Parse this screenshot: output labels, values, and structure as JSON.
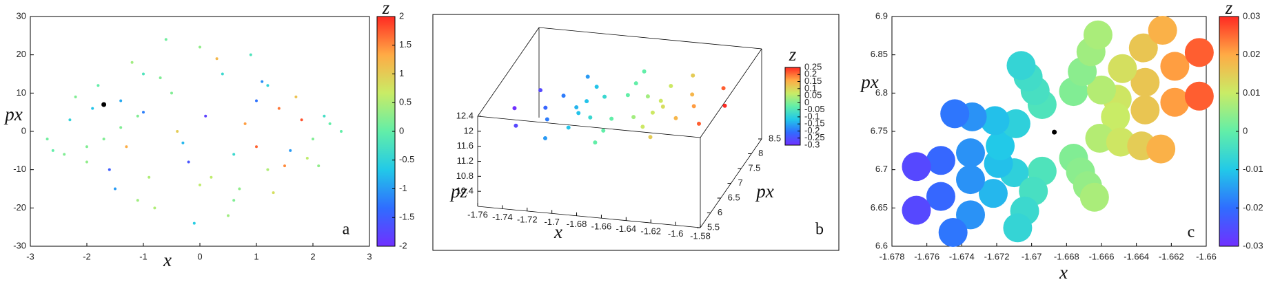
{
  "colormap": [
    "#7030ff",
    "#2f6dff",
    "#22c9e8",
    "#62eea8",
    "#c9ec66",
    "#ffab45",
    "#ff2a22"
  ],
  "chart_data": [
    {
      "type": "scatter",
      "panel_label": "a",
      "x_label": "x",
      "y_label": "px",
      "colorbar_label": "z",
      "x": [
        -2.6,
        -2.3,
        -2.0,
        -1.8,
        -1.5,
        -1.2,
        -1.0,
        -0.8,
        -0.5,
        -0.3,
        0,
        0.2,
        0.4,
        0.6,
        0.8,
        1.0,
        1.2,
        1.4,
        1.6,
        1.8,
        2.0,
        2.2,
        2.5,
        -2.2,
        -1.6,
        -1.1,
        -0.6,
        -0.1,
        0.3,
        0.7,
        1.1,
        1.5,
        1.9,
        2.3,
        -1.9,
        -1.3,
        -0.7,
        -0.2,
        0.5,
        0.9,
        1.3,
        1.7,
        -2.7,
        -1.4,
        -0.9,
        0.1,
        1.0,
        2.1,
        -0.4,
        0.6,
        -1.0,
        0.0,
        1.2,
        -2.4,
        -2.0,
        -1.7,
        -1.4,
        -1.1
      ],
      "y": [
        -5,
        3,
        -8,
        12,
        -15,
        18,
        5,
        -20,
        10,
        -3,
        22,
        -12,
        15,
        -18,
        2,
        8,
        -10,
        6,
        -5,
        3,
        -2,
        4,
        0,
        9,
        -10,
        -18,
        24,
        -24,
        19,
        -15,
        13,
        -9,
        -7,
        2,
        6,
        -4,
        14,
        -8,
        -22,
        20,
        -16,
        9,
        -2,
        8,
        -12,
        4,
        -4,
        -9,
        0,
        -6,
        15,
        -14,
        12,
        -6,
        -4,
        -2,
        1,
        4
      ],
      "c": [
        0,
        -0.5,
        0.3,
        0,
        -1,
        0.4,
        -1.2,
        0.5,
        0.2,
        -0.8,
        0.3,
        0.6,
        -0.4,
        0.2,
        1.4,
        -1.3,
        0.5,
        1.6,
        -1.0,
        1.8,
        0.2,
        -0.3,
        0,
        0.2,
        -1.5,
        0.4,
        0.1,
        -0.6,
        1.2,
        0.3,
        -1.1,
        1.5,
        0.6,
        0,
        -0.7,
        1.3,
        0.2,
        -1.6,
        0.4,
        -0.2,
        0.8,
        1.1,
        0.1,
        -0.9,
        0.5,
        -1.8,
        1.7,
        0.3,
        1.0,
        -0.4,
        -0.2,
        0.6,
        -0.5,
        0.2,
        0.2,
        0.2,
        0.2,
        0.2
      ],
      "marker": {
        "x": -1.7,
        "y": 7,
        "color": "#000000"
      },
      "xlim": [
        -3,
        3
      ],
      "xticks": [
        -3,
        -2,
        -1,
        0,
        1,
        2,
        3
      ],
      "ylim": [
        -30,
        30
      ],
      "yticks": [
        -30,
        -20,
        -10,
        0,
        10,
        20,
        30
      ],
      "clim": [
        -2,
        2
      ],
      "cticks": [
        -2,
        -1.5,
        -1,
        -0.5,
        0,
        0.5,
        1,
        1.5,
        2
      ]
    },
    {
      "type": "scatter3d",
      "panel_label": "b",
      "x_label": "x",
      "y_label": "px",
      "z_label": "pz",
      "colorbar_label": "z",
      "x": [
        -1.585,
        -1.596,
        -1.628,
        -1.67,
        -1.713,
        -1.744,
        -1.755,
        -1.744,
        -1.713,
        -1.67,
        -1.628,
        -1.596,
        -1.61,
        -1.618,
        -1.64,
        -1.67,
        -1.7,
        -1.722,
        -1.73,
        -1.722,
        -1.7,
        -1.67,
        -1.64,
        -1.618,
        -1.635,
        -1.64,
        -1.653,
        -1.67,
        -1.688,
        -1.7,
        -1.705,
        -1.7,
        -1.688,
        -1.67,
        -1.653,
        -1.64
      ],
      "y": [
        7,
        7.6,
        8.04,
        8.2,
        8.04,
        7.6,
        7,
        6.4,
        5.96,
        5.8,
        5.96,
        6.4,
        7,
        7.4,
        7.69,
        7.8,
        7.69,
        7.4,
        7,
        6.6,
        6.31,
        6.2,
        6.31,
        6.6,
        7,
        7.2,
        7.35,
        7.4,
        7.35,
        7.2,
        7,
        6.8,
        6.65,
        6.6,
        6.65,
        6.8
      ],
      "z": [
        12.05,
        12.01,
        11.9,
        11.75,
        11.6,
        11.49,
        11.45,
        11.49,
        11.6,
        11.75,
        11.9,
        12.01,
        11.96,
        11.93,
        11.86,
        11.75,
        11.65,
        11.57,
        11.54,
        11.57,
        11.65,
        11.75,
        11.86,
        11.93,
        11.87,
        11.85,
        11.81,
        11.75,
        11.69,
        11.65,
        11.63,
        11.65,
        11.69,
        11.75,
        11.81,
        11.85
      ],
      "c": [
        0.25,
        0.213,
        0.113,
        -0.025,
        -0.163,
        -0.263,
        -0.3,
        -0.263,
        -0.163,
        -0.025,
        0.113,
        0.213,
        0.169,
        0.143,
        0.072,
        -0.025,
        -0.122,
        -0.193,
        -0.219,
        -0.193,
        -0.122,
        -0.025,
        0.072,
        0.143,
        0.088,
        0.073,
        0.032,
        -0.025,
        -0.082,
        -0.123,
        -0.138,
        -0.123,
        -0.082,
        -0.025,
        0.032,
        0.073
      ],
      "xlim": [
        -1.76,
        -1.58
      ],
      "xticks": [
        -1.76,
        -1.74,
        -1.72,
        -1.7,
        -1.68,
        -1.66,
        -1.64,
        -1.62,
        -1.6,
        -1.58
      ],
      "ylim": [
        5.5,
        8.5
      ],
      "yticks": [
        5.5,
        6,
        6.5,
        7,
        7.5,
        8,
        8.5
      ],
      "zlim": [
        10,
        12.4
      ],
      "zticks": [
        10.4,
        10.8,
        11.2,
        11.6,
        12,
        12.4
      ],
      "clim": [
        -0.3,
        0.25
      ],
      "cticks": [
        -0.3,
        -0.25,
        -0.2,
        -0.15,
        -0.1,
        -0.05,
        0,
        0.05,
        0.1,
        0.15,
        0.2,
        0.25
      ]
    },
    {
      "type": "scatter",
      "panel_label": "c",
      "x_label": "x",
      "y_label": "px",
      "colorbar_label": "z",
      "x": [
        -1.6651,
        -1.6652,
        -1.6661,
        -1.6676,
        -1.6694,
        -1.671,
        -1.6719,
        -1.6718,
        -1.6709,
        -1.6694,
        -1.6676,
        -1.666,
        -1.6635,
        -1.6635,
        -1.6649,
        -1.6672,
        -1.6699,
        -1.6722,
        -1.6735,
        -1.6735,
        -1.6721,
        -1.6698,
        -1.6671,
        -1.6648,
        -1.6618,
        -1.6618,
        -1.6637,
        -1.6668,
        -1.6704,
        -1.6735,
        -1.6752,
        -1.6752,
        -1.6734,
        -1.6702,
        -1.6666,
        -1.6636,
        -1.6604,
        -1.6604,
        -1.6626,
        -1.6664,
        -1.6708,
        -1.6745,
        -1.6766,
        -1.6766,
        -1.6744,
        -1.6706,
        -1.6662,
        -1.6625
      ],
      "y": [
        6.792,
        6.769,
        6.741,
        6.715,
        6.698,
        6.696,
        6.708,
        6.731,
        6.76,
        6.785,
        6.802,
        6.804,
        6.814,
        6.778,
        6.736,
        6.697,
        6.672,
        6.669,
        6.687,
        6.722,
        6.764,
        6.803,
        6.828,
        6.832,
        6.835,
        6.788,
        6.731,
        6.679,
        6.646,
        6.641,
        6.665,
        6.712,
        6.769,
        6.821,
        6.854,
        6.859,
        6.853,
        6.796,
        6.727,
        6.664,
        6.624,
        6.618,
        6.647,
        6.704,
        6.773,
        6.836,
        6.876,
        6.882
      ],
      "c": [
        0.011,
        0.01,
        0.008,
        0.003,
        -0.003,
        -0.008,
        -0.011,
        -0.01,
        -0.008,
        -0.003,
        0.003,
        0.008,
        0.016,
        0.016,
        0.011,
        0.004,
        -0.004,
        -0.012,
        -0.016,
        -0.016,
        -0.011,
        -0.004,
        0.004,
        0.012,
        0.021,
        0.021,
        0.015,
        0.005,
        -0.006,
        -0.016,
        -0.021,
        -0.021,
        -0.016,
        -0.005,
        0.006,
        0.016,
        0.026,
        0.026,
        0.019,
        0.007,
        -0.007,
        -0.019,
        -0.026,
        -0.026,
        -0.019,
        -0.007,
        0.007,
        0.019
      ],
      "marker": {
        "x": -1.6687,
        "y": 6.749,
        "color": "#000000"
      },
      "xlim": [
        -1.678,
        -1.66
      ],
      "xticks": [
        -1.678,
        -1.676,
        -1.674,
        -1.672,
        -1.67,
        -1.668,
        -1.666,
        -1.664,
        -1.662,
        -1.66
      ],
      "ylim": [
        6.6,
        6.9
      ],
      "yticks": [
        6.6,
        6.65,
        6.7,
        6.75,
        6.8,
        6.85,
        6.9
      ],
      "clim": [
        -0.03,
        0.03
      ],
      "cticks": [
        -0.03,
        -0.02,
        -0.01,
        0,
        0.01,
        0.02,
        0.03
      ]
    }
  ]
}
